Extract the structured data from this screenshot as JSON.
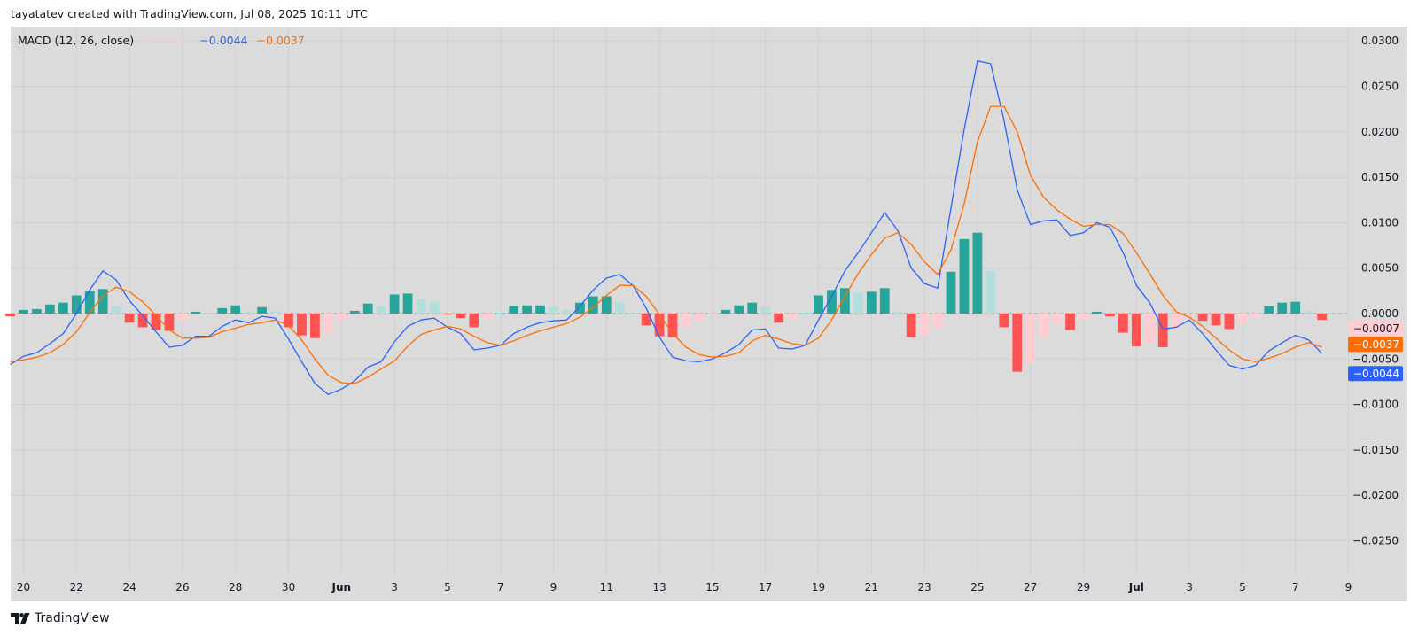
{
  "header": {
    "credit": "tayatatev created with TradingView.com, Jul 08, 2025 10:11 UTC"
  },
  "legend": {
    "indicator": "MACD (12, 26, close)",
    "histogram_value": "−0.0007",
    "macd_value": "−0.0044",
    "signal_value": "−0.0037"
  },
  "footer": {
    "brand": "TradingView"
  },
  "colors": {
    "background": "#dbdbdb",
    "grid": "#cfcfcf",
    "macd": "#2962ff",
    "signal": "#ff6d00",
    "hist_pos_rising": "#26a69a",
    "hist_pos_falling": "#b2dfdb",
    "hist_neg_falling": "#ff5252",
    "hist_neg_rising": "#ffcdd2",
    "zero_line": "#9e9e9e"
  },
  "chart_data": {
    "type": "line",
    "title": "MACD (12, 26, close)",
    "grid": true,
    "ylim": [
      -0.0285,
      0.0305
    ],
    "xlim": [
      "2025-05-19 13:00",
      "2025-07-09 22:00"
    ],
    "series_start": "2025-05-19 12:00",
    "series_interval_hours": 12,
    "y_ticks": [
      {
        "value": 0.03,
        "label": "0.0300"
      },
      {
        "value": 0.025,
        "label": "0.0250"
      },
      {
        "value": 0.02,
        "label": "0.0200"
      },
      {
        "value": 0.015,
        "label": "0.0150"
      },
      {
        "value": 0.01,
        "label": "0.0100"
      },
      {
        "value": 0.005,
        "label": "0.0050"
      },
      {
        "value": 0.0,
        "label": "0.0000"
      },
      {
        "value": -0.005,
        "label": "−0.0050"
      },
      {
        "value": -0.01,
        "label": "−0.0100"
      },
      {
        "value": -0.015,
        "label": "−0.0150"
      },
      {
        "value": -0.02,
        "label": "−0.0200"
      },
      {
        "value": -0.025,
        "label": "−0.0250"
      }
    ],
    "x_ticks": [
      {
        "date": "2025-05-20",
        "label": "20"
      },
      {
        "date": "2025-05-22",
        "label": "22"
      },
      {
        "date": "2025-05-24",
        "label": "24"
      },
      {
        "date": "2025-05-26",
        "label": "26"
      },
      {
        "date": "2025-05-28",
        "label": "28"
      },
      {
        "date": "2025-05-30",
        "label": "30"
      },
      {
        "date": "2025-06-01",
        "label": "Jun",
        "bold": true
      },
      {
        "date": "2025-06-03",
        "label": "3"
      },
      {
        "date": "2025-06-05",
        "label": "5"
      },
      {
        "date": "2025-06-07",
        "label": "7"
      },
      {
        "date": "2025-06-09",
        "label": "9"
      },
      {
        "date": "2025-06-11",
        "label": "11"
      },
      {
        "date": "2025-06-13",
        "label": "13"
      },
      {
        "date": "2025-06-15",
        "label": "15"
      },
      {
        "date": "2025-06-17",
        "label": "17"
      },
      {
        "date": "2025-06-19",
        "label": "19"
      },
      {
        "date": "2025-06-21",
        "label": "21"
      },
      {
        "date": "2025-06-23",
        "label": "23"
      },
      {
        "date": "2025-06-25",
        "label": "25"
      },
      {
        "date": "2025-06-27",
        "label": "27"
      },
      {
        "date": "2025-06-29",
        "label": "29"
      },
      {
        "date": "2025-07-01",
        "label": "Jul",
        "bold": true
      },
      {
        "date": "2025-07-03",
        "label": "3"
      },
      {
        "date": "2025-07-05",
        "label": "5"
      },
      {
        "date": "2025-07-07",
        "label": "7"
      },
      {
        "date": "2025-07-09",
        "label": "9"
      }
    ],
    "series": [
      {
        "name": "MACD",
        "color": "#2962ff",
        "values": [
          -0.0056,
          -0.0047,
          -0.0043,
          -0.0033,
          -0.0022,
          0.0,
          0.0026,
          0.0047,
          0.0037,
          0.0014,
          -0.0002,
          -0.002,
          -0.0037,
          -0.0035,
          -0.0025,
          -0.0025,
          -0.0014,
          -0.0007,
          -0.001,
          -0.0003,
          -0.0005,
          -0.0028,
          -0.0053,
          -0.0077,
          -0.0089,
          -0.0083,
          -0.0074,
          -0.0059,
          -0.0053,
          -0.0031,
          -0.0014,
          -0.0007,
          -0.0005,
          -0.0015,
          -0.0022,
          -0.004,
          -0.0038,
          -0.0035,
          -0.0022,
          -0.0015,
          -0.001,
          -0.0008,
          -0.0007,
          0.0008,
          0.0026,
          0.0039,
          0.0043,
          0.0031,
          0.0006,
          -0.0026,
          -0.0048,
          -0.0052,
          -0.0053,
          -0.005,
          -0.0043,
          -0.0034,
          -0.0018,
          -0.0017,
          -0.0038,
          -0.0039,
          -0.0035,
          -0.0007,
          0.0019,
          0.0047,
          0.0067,
          0.0089,
          0.0111,
          0.0091,
          0.005,
          0.0033,
          0.0028,
          0.0116,
          0.0203,
          0.0278,
          0.0275,
          0.0213,
          0.0136,
          0.0098,
          0.0102,
          0.0103,
          0.0086,
          0.0089,
          0.01,
          0.0095,
          0.0067,
          0.0031,
          0.0012,
          -0.0017,
          -0.0015,
          -0.0007,
          -0.0022,
          -0.004,
          -0.0057,
          -0.0061,
          -0.0057,
          -0.0041,
          -0.0032,
          -0.0024,
          -0.0029,
          -0.0044
        ]
      },
      {
        "name": "Signal",
        "color": "#ff6d00",
        "values": [
          -0.0053,
          -0.0051,
          -0.0048,
          -0.0043,
          -0.0034,
          -0.002,
          0.0001,
          0.002,
          0.0029,
          0.0024,
          0.0013,
          -0.0002,
          -0.0018,
          -0.0027,
          -0.0027,
          -0.0026,
          -0.002,
          -0.0016,
          -0.0012,
          -0.001,
          -0.0007,
          -0.0013,
          -0.0029,
          -0.005,
          -0.0068,
          -0.0076,
          -0.0077,
          -0.007,
          -0.0061,
          -0.0052,
          -0.0036,
          -0.0023,
          -0.0018,
          -0.0014,
          -0.0017,
          -0.0025,
          -0.0032,
          -0.0035,
          -0.003,
          -0.0024,
          -0.0019,
          -0.0015,
          -0.0011,
          -0.0004,
          0.0007,
          0.002,
          0.0031,
          0.0031,
          0.0019,
          -0.0001,
          -0.0022,
          -0.0037,
          -0.0045,
          -0.0048,
          -0.0047,
          -0.0043,
          -0.003,
          -0.0024,
          -0.0028,
          -0.0033,
          -0.0035,
          -0.0027,
          -0.0007,
          0.0019,
          0.0044,
          0.0065,
          0.0083,
          0.0089,
          0.0076,
          0.0057,
          0.0043,
          0.007,
          0.0121,
          0.0189,
          0.0228,
          0.0228,
          0.02,
          0.0152,
          0.0128,
          0.0114,
          0.0104,
          0.0096,
          0.0098,
          0.0098,
          0.0088,
          0.0067,
          0.0044,
          0.002,
          0.0002,
          -0.0004,
          -0.0014,
          -0.0027,
          -0.004,
          -0.005,
          -0.0053,
          -0.0049,
          -0.0044,
          -0.0037,
          -0.0032,
          -0.0037
        ]
      },
      {
        "name": "Histogram",
        "type": "bar",
        "values": [
          -0.0003,
          0.0004,
          0.0005,
          0.001,
          0.0012,
          0.002,
          0.0025,
          0.0027,
          0.0008,
          -0.001,
          -0.0015,
          -0.0018,
          -0.0019,
          -0.0008,
          0.0002,
          0.0001,
          0.0006,
          0.0009,
          0.0002,
          0.0007,
          0.0002,
          -0.0015,
          -0.0024,
          -0.0027,
          -0.0021,
          -0.0007,
          0.0003,
          0.0011,
          0.0008,
          0.0021,
          0.0022,
          0.0016,
          0.0013,
          -0.0001,
          -0.0005,
          -0.0015,
          -0.0006,
          0.0,
          0.0008,
          0.0009,
          0.0009,
          0.0007,
          0.0004,
          0.0012,
          0.0019,
          0.0019,
          0.0012,
          0.0,
          -0.0013,
          -0.0025,
          -0.0026,
          -0.0015,
          -0.0008,
          -0.0002,
          0.0004,
          0.0009,
          0.0012,
          0.0007,
          -0.001,
          -0.0006,
          0.0,
          0.002,
          0.0026,
          0.0028,
          0.0023,
          0.0024,
          0.0028,
          0.0002,
          -0.0026,
          -0.0024,
          -0.0015,
          0.0046,
          0.0082,
          0.0089,
          0.0047,
          -0.0015,
          -0.0064,
          -0.0054,
          -0.0026,
          -0.0011,
          -0.0018,
          -0.0007,
          0.0002,
          -0.0003,
          -0.0021,
          -0.0036,
          -0.0032,
          -0.0037,
          -0.0017,
          -0.0003,
          -0.0008,
          -0.0013,
          -0.0017,
          -0.0011,
          -0.0004,
          0.0008,
          0.0012,
          0.0013,
          0.0003,
          -0.0007
        ]
      }
    ],
    "price_labels": [
      {
        "series": "Histogram",
        "value": -0.0007,
        "label": "−0.0007",
        "bg": "#ffcdd2",
        "fg": "#131722"
      },
      {
        "series": "Signal",
        "value": -0.0037,
        "label": "−0.0037",
        "bg": "#ff6d00",
        "fg": "#ffffff"
      },
      {
        "series": "MACD",
        "value": -0.0044,
        "label": "−0.0044",
        "bg": "#2962ff",
        "fg": "#ffffff"
      }
    ]
  }
}
